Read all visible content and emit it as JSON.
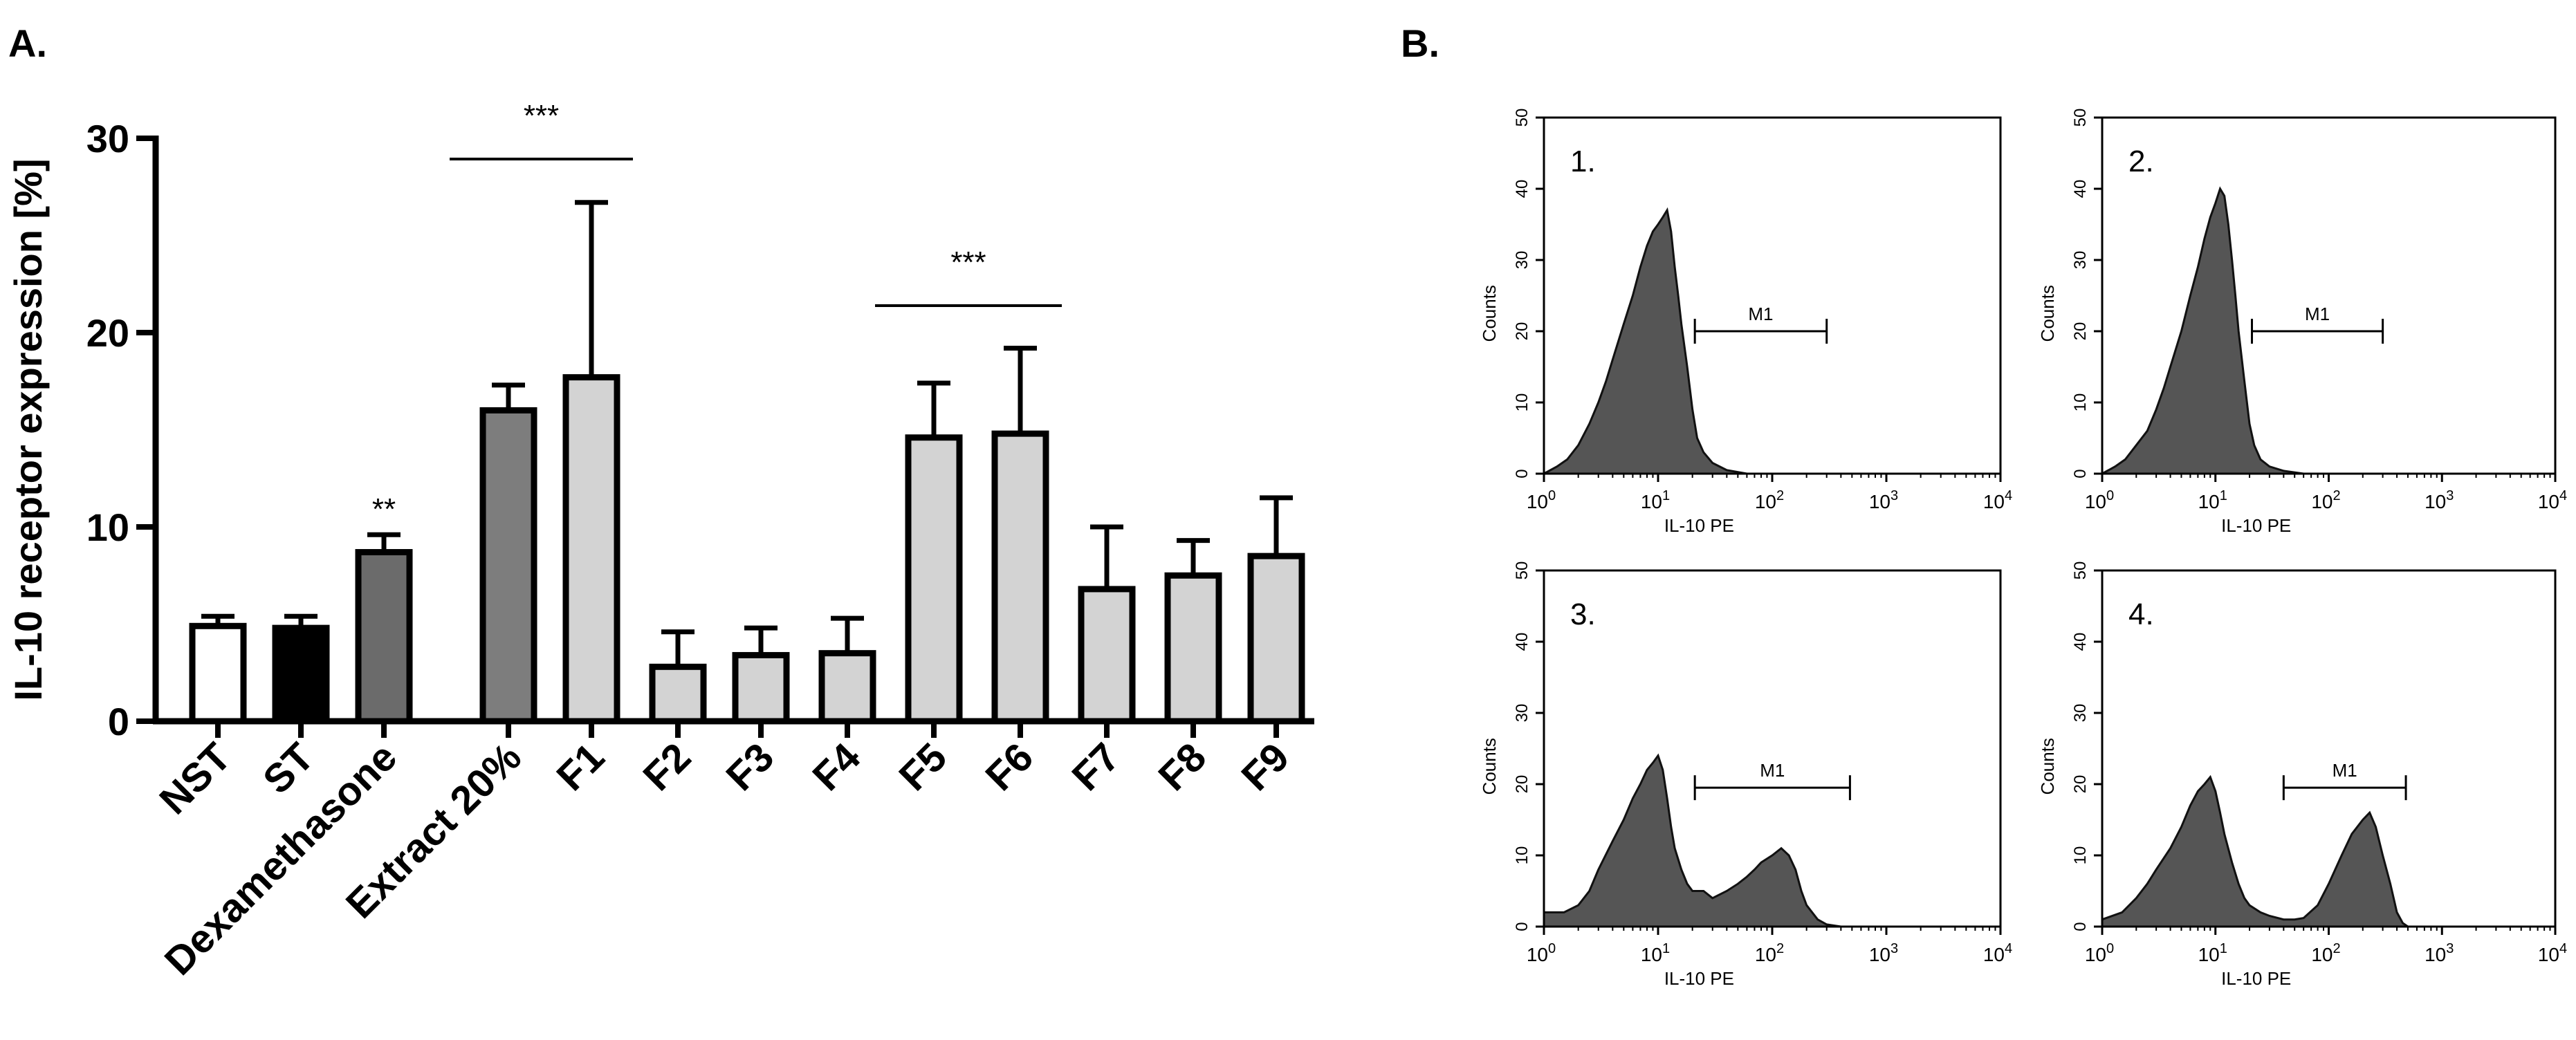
{
  "panel_a_label": "A.",
  "panel_b_label": "B.",
  "colors": {
    "white": "#ffffff",
    "black": "#000000",
    "dark": "#6b6b6b",
    "mid": "#7d7d7d",
    "light": "#d3d3d3",
    "hist": "#555555"
  },
  "chart_data": [
    {
      "type": "bar",
      "panel": "A",
      "title": "",
      "xlabel": "",
      "ylabel": "IL-10 receptor expression [%]",
      "ylim": [
        0,
        30
      ],
      "yticks": [
        0,
        10,
        20,
        30
      ],
      "categories": [
        "NST",
        "ST",
        "Dexamethasone",
        "Extract 20%",
        "F1",
        "F2",
        "F3",
        "F4",
        "F5",
        "F6",
        "F7",
        "F8",
        "F9"
      ],
      "values": [
        4.9,
        4.8,
        8.7,
        16.0,
        17.7,
        2.8,
        3.4,
        3.5,
        14.6,
        14.8,
        6.8,
        7.5,
        8.5
      ],
      "errors": [
        0.5,
        0.6,
        0.9,
        1.3,
        9.0,
        1.8,
        1.4,
        1.8,
        2.8,
        4.4,
        3.2,
        1.8,
        3.0
      ],
      "fills": [
        "white",
        "black",
        "dark",
        "mid",
        "light",
        "light",
        "light",
        "light",
        "light",
        "light",
        "light",
        "light",
        "light"
      ],
      "annotations": [
        {
          "text": "**",
          "over": [
            "Dexamethasone"
          ]
        },
        {
          "text": "***",
          "over": [
            "Extract 20%",
            "F1"
          ]
        },
        {
          "text": "***",
          "over": [
            "F5",
            "F6"
          ]
        }
      ]
    },
    {
      "type": "area",
      "panel": "B",
      "subtype": "flow-cytometry histograms",
      "xlabel": "IL-10 PE",
      "ylabel": "Counts",
      "ylim": [
        0,
        50
      ],
      "yticks": [
        0,
        10,
        20,
        30,
        40,
        50
      ],
      "xscale": "log",
      "xlim": [
        1,
        10000
      ],
      "xtick_labels": [
        {
          "base": "10",
          "exp": "0"
        },
        {
          "base": "10",
          "exp": "1"
        },
        {
          "base": "10",
          "exp": "2"
        },
        {
          "base": "10",
          "exp": "3"
        },
        {
          "base": "10",
          "exp": "4"
        }
      ],
      "gate_label": "M1",
      "histograms": [
        {
          "label": "1.",
          "gate": [
            21,
            300
          ],
          "points": [
            [
              1,
              0
            ],
            [
              1.3,
              1
            ],
            [
              1.6,
              2
            ],
            [
              2,
              4
            ],
            [
              2.5,
              7
            ],
            [
              3,
              10
            ],
            [
              3.5,
              13
            ],
            [
              4,
              16
            ],
            [
              5,
              21
            ],
            [
              6,
              25
            ],
            [
              7,
              29
            ],
            [
              8,
              32
            ],
            [
              9,
              34
            ],
            [
              10,
              35
            ],
            [
              11,
              36
            ],
            [
              12,
              37
            ],
            [
              13,
              34
            ],
            [
              14,
              29
            ],
            [
              15,
              25
            ],
            [
              16,
              21
            ],
            [
              18,
              15
            ],
            [
              20,
              9
            ],
            [
              22,
              5
            ],
            [
              25,
              3
            ],
            [
              30,
              1.5
            ],
            [
              40,
              0.5
            ],
            [
              60,
              0
            ]
          ]
        },
        {
          "label": "2.",
          "gate": [
            21,
            300
          ],
          "points": [
            [
              1,
              0
            ],
            [
              1.3,
              1
            ],
            [
              1.6,
              2
            ],
            [
              2,
              4
            ],
            [
              2.5,
              6
            ],
            [
              3,
              9
            ],
            [
              3.5,
              12
            ],
            [
              4,
              15
            ],
            [
              5,
              20
            ],
            [
              6,
              25
            ],
            [
              7,
              29
            ],
            [
              8,
              33
            ],
            [
              9,
              36
            ],
            [
              10,
              38
            ],
            [
              11,
              40
            ],
            [
              12,
              39
            ],
            [
              13,
              35
            ],
            [
              14,
              30
            ],
            [
              15,
              25
            ],
            [
              16,
              20
            ],
            [
              18,
              13
            ],
            [
              20,
              7
            ],
            [
              22,
              4
            ],
            [
              25,
              2
            ],
            [
              30,
              1
            ],
            [
              40,
              0.4
            ],
            [
              60,
              0
            ]
          ]
        },
        {
          "label": "3.",
          "gate": [
            21,
            480
          ],
          "points": [
            [
              1,
              2
            ],
            [
              1.5,
              2
            ],
            [
              2,
              3
            ],
            [
              2.5,
              5
            ],
            [
              3,
              8
            ],
            [
              4,
              12
            ],
            [
              5,
              15
            ],
            [
              6,
              18
            ],
            [
              7,
              20
            ],
            [
              8,
              22
            ],
            [
              9,
              23
            ],
            [
              10,
              24
            ],
            [
              11,
              22
            ],
            [
              12,
              18
            ],
            [
              13,
              14
            ],
            [
              14,
              11
            ],
            [
              16,
              8
            ],
            [
              18,
              6
            ],
            [
              20,
              5
            ],
            [
              25,
              5
            ],
            [
              30,
              4
            ],
            [
              40,
              5
            ],
            [
              50,
              6
            ],
            [
              60,
              7
            ],
            [
              70,
              8
            ],
            [
              80,
              9
            ],
            [
              100,
              10
            ],
            [
              120,
              11
            ],
            [
              140,
              10
            ],
            [
              160,
              8
            ],
            [
              180,
              5
            ],
            [
              200,
              3
            ],
            [
              250,
              1
            ],
            [
              300,
              0.3
            ],
            [
              400,
              0
            ]
          ]
        },
        {
          "label": "4.",
          "gate": [
            40,
            480
          ],
          "points": [
            [
              1,
              1
            ],
            [
              1.5,
              2
            ],
            [
              2,
              4
            ],
            [
              2.5,
              6
            ],
            [
              3,
              8
            ],
            [
              4,
              11
            ],
            [
              5,
              14
            ],
            [
              6,
              17
            ],
            [
              7,
              19
            ],
            [
              8,
              20
            ],
            [
              9,
              21
            ],
            [
              10,
              19
            ],
            [
              11,
              16
            ],
            [
              12,
              13
            ],
            [
              14,
              9
            ],
            [
              16,
              6
            ],
            [
              18,
              4
            ],
            [
              20,
              3
            ],
            [
              25,
              2
            ],
            [
              30,
              1.5
            ],
            [
              40,
              1
            ],
            [
              50,
              1
            ],
            [
              60,
              1.2
            ],
            [
              80,
              3
            ],
            [
              100,
              6
            ],
            [
              130,
              10
            ],
            [
              160,
              13
            ],
            [
              200,
              15
            ],
            [
              230,
              16
            ],
            [
              260,
              14
            ],
            [
              300,
              10
            ],
            [
              350,
              6
            ],
            [
              400,
              2
            ],
            [
              450,
              0.5
            ],
            [
              500,
              0
            ]
          ]
        }
      ]
    }
  ]
}
